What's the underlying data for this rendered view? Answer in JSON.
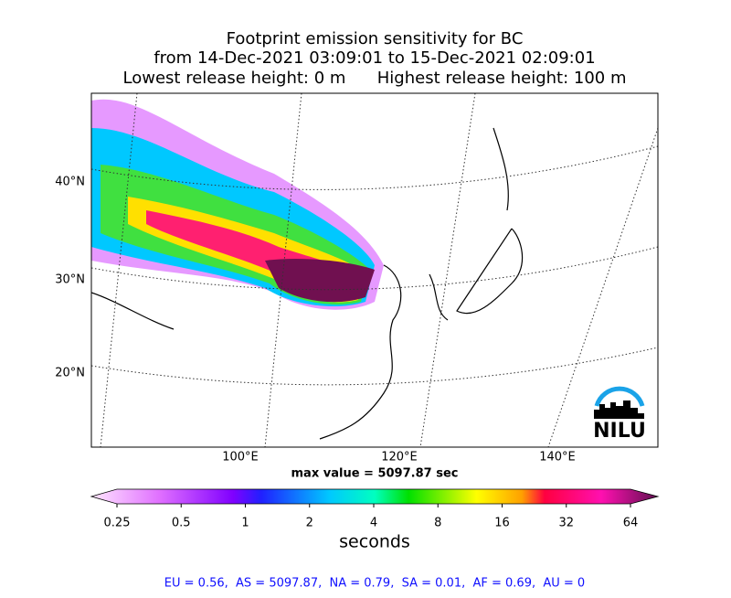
{
  "header": {
    "title_lines": [
      "Footprint emission sensitivity for BC",
      "from 14-Dec-2021 03:09:01 to 15-Dec-2021 02:09:01",
      "Lowest release height: 0 m      Highest release height: 100 m"
    ]
  },
  "map": {
    "lat_labels": [
      "40°N",
      "30°N",
      "20°N"
    ],
    "lon_labels": [
      "100°E",
      "120°E",
      "140°E"
    ],
    "max_value_text": "max value = 5097.87 sec",
    "logo": "NILU"
  },
  "colorbar": {
    "label": "seconds",
    "log": true,
    "lim": [
      0.25,
      64
    ],
    "ticks": [
      0.25,
      0.5,
      1,
      2,
      4,
      8,
      16,
      32,
      64
    ]
  },
  "footer": {
    "text": "EU = 0.56,  AS = 5097.87,  NA = 0.79,  SA = 0.01,  AF = 0.69,  AU = 0"
  }
}
